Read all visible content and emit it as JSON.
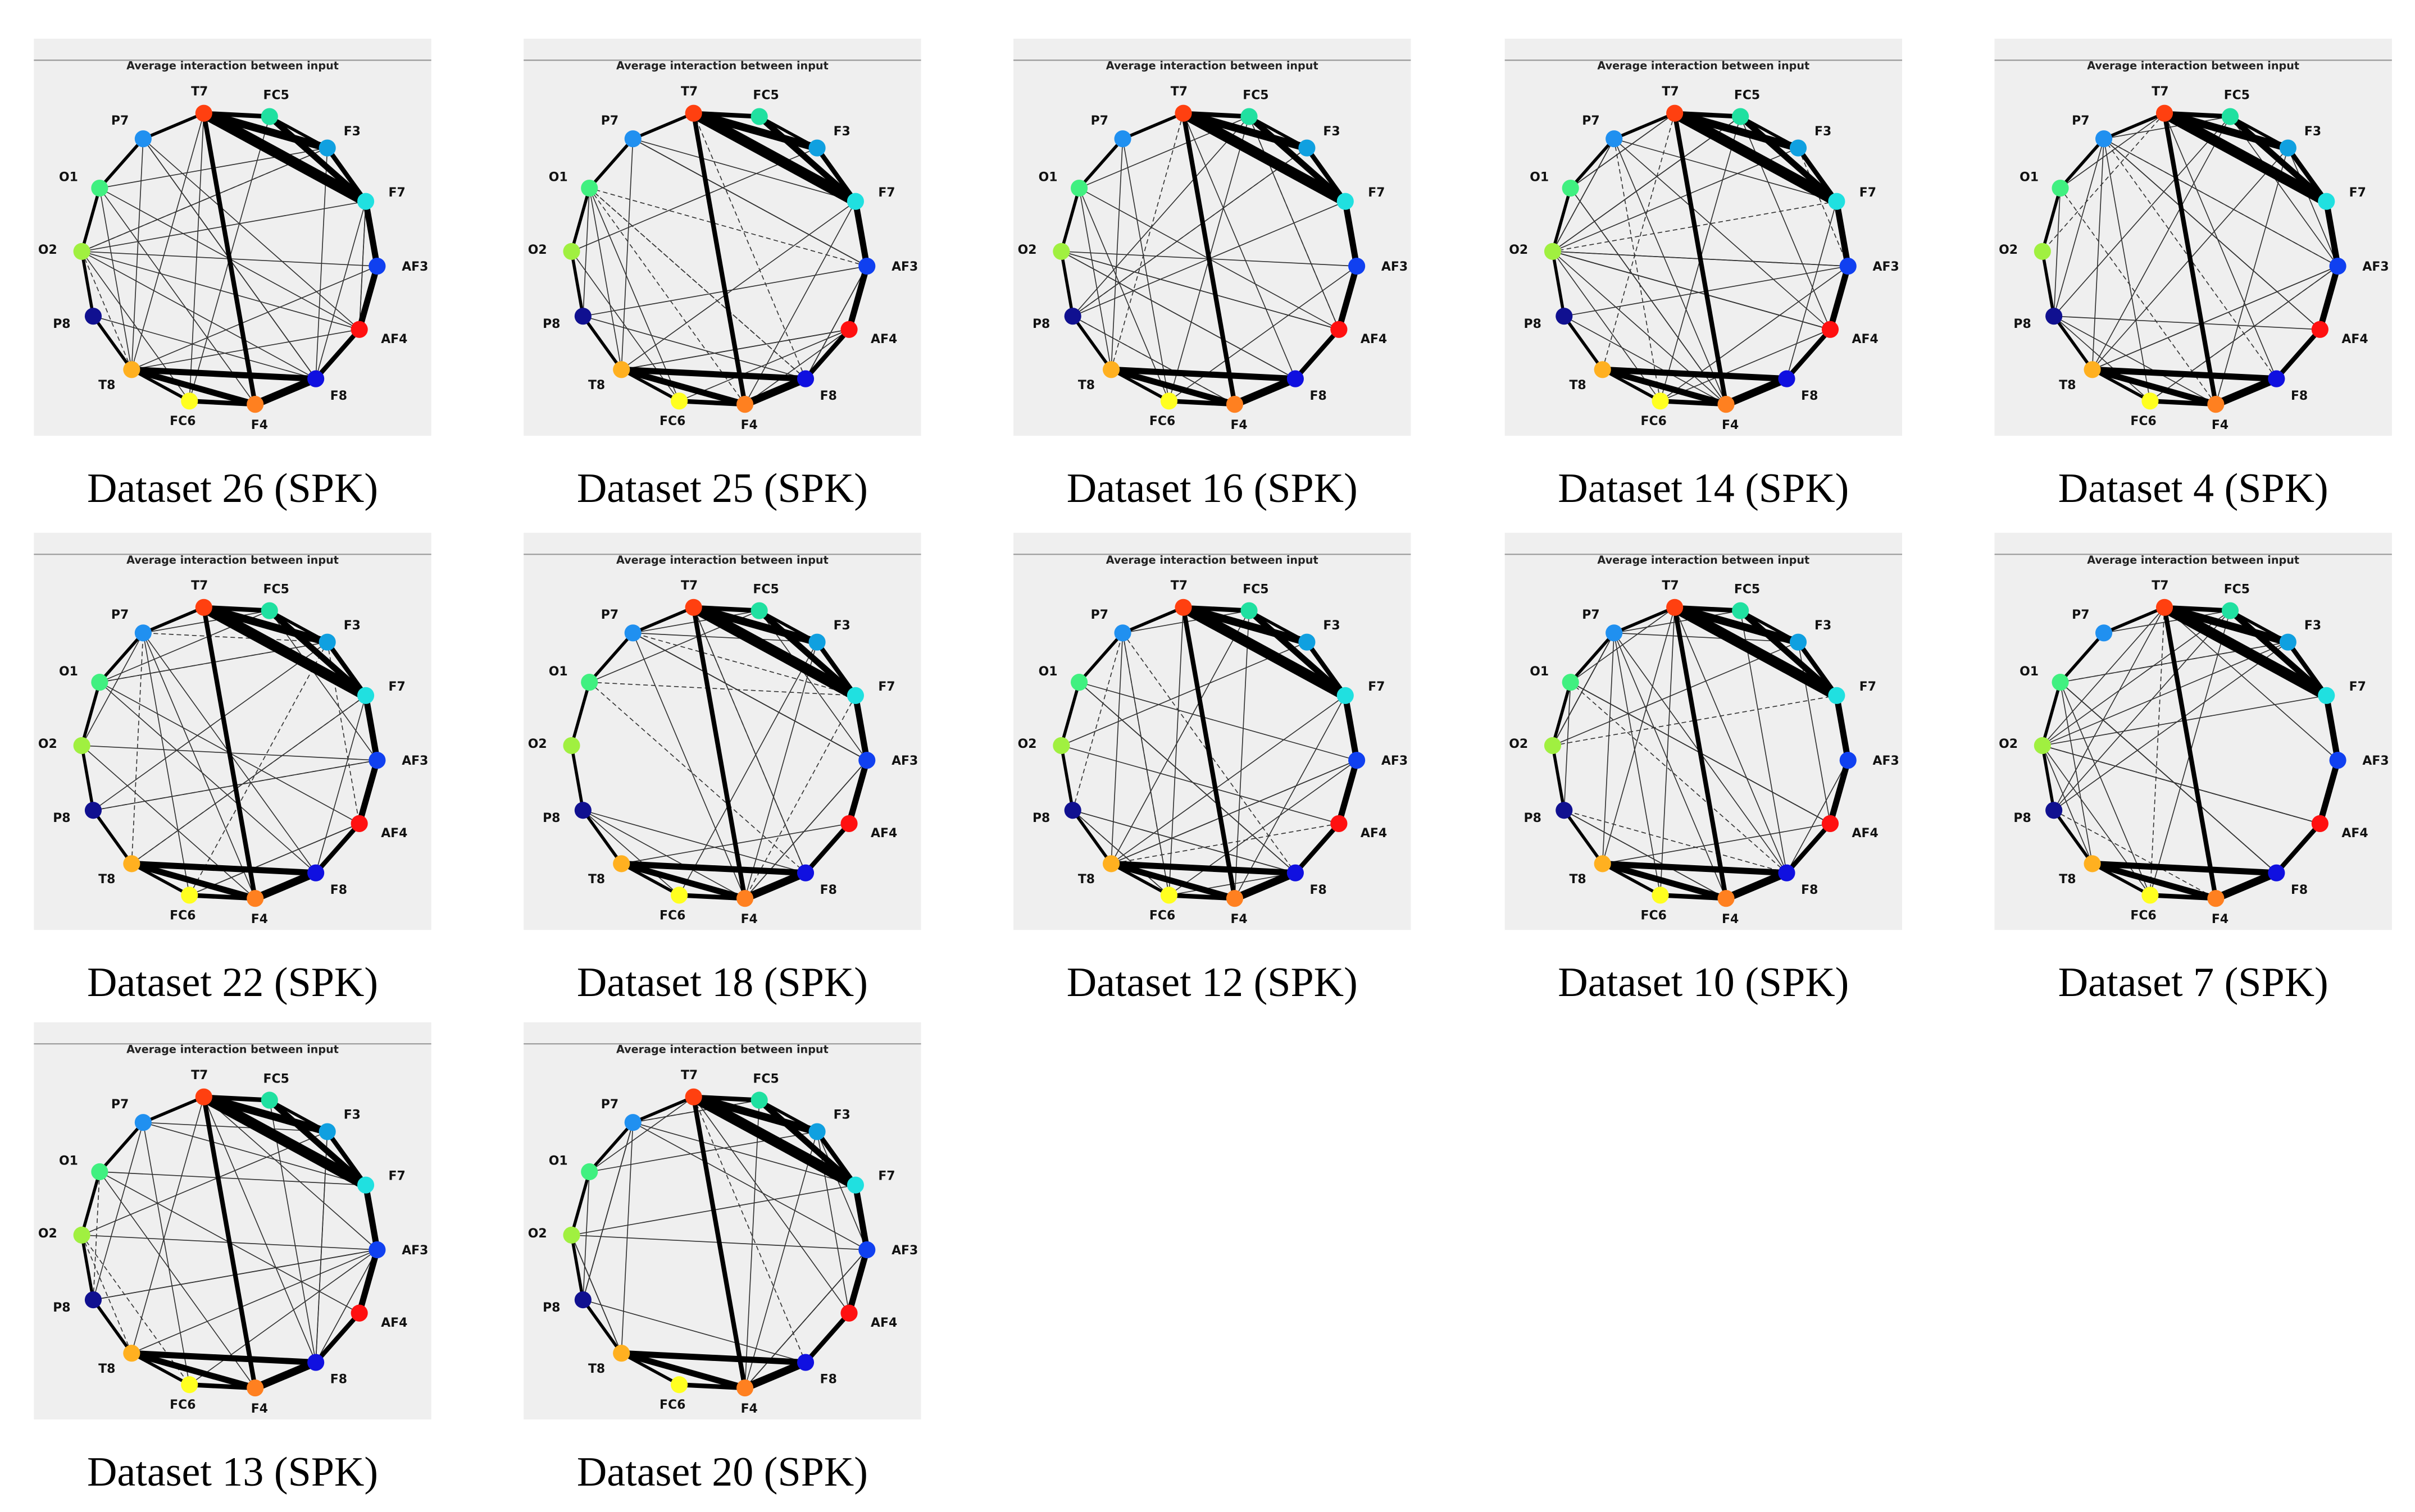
{
  "panels": [
    {
      "title": "Average interaction between input",
      "nodes": [
        "T7",
        "FC5",
        "F3",
        "F7",
        "AF3",
        "AF4",
        "F8",
        "F4",
        "FC6",
        "T8",
        "P8",
        "O2",
        "O1",
        "P7"
      ],
      "caption": "Dataset 26 (SPK)"
    },
    {
      "title": "Average interaction between input",
      "nodes": [
        "T7",
        "FC5",
        "F3",
        "F7",
        "AF3",
        "AF4",
        "F8",
        "F4",
        "FC6",
        "T8",
        "P8",
        "O2",
        "O1",
        "P7"
      ],
      "caption": "Dataset 25 (SPK)"
    },
    {
      "title": "Average interaction between input",
      "nodes": [
        "T7",
        "FC5",
        "F3",
        "F7",
        "AF3",
        "AF4",
        "F8",
        "F4",
        "FC6",
        "T8",
        "P8",
        "O2",
        "O1",
        "P7"
      ],
      "caption": "Dataset 16 (SPK)"
    },
    {
      "title": "Average interaction between input",
      "nodes": [
        "T7",
        "FC5",
        "F3",
        "F7",
        "AF3",
        "AF4",
        "F8",
        "F4",
        "FC6",
        "T8",
        "P8",
        "O2",
        "O1",
        "P7"
      ],
      "caption": "Dataset 14 (SPK)"
    },
    {
      "title": "Average interaction between input",
      "nodes": [
        "T7",
        "FC5",
        "F3",
        "F7",
        "AF3",
        "AF4",
        "F8",
        "F4",
        "FC6",
        "T8",
        "P8",
        "O2",
        "O1",
        "P7"
      ],
      "caption": "Dataset 4 (SPK)"
    },
    {
      "title": "Average interaction between input",
      "nodes": [
        "T7",
        "FC5",
        "F3",
        "F7",
        "AF3",
        "AF4",
        "F8",
        "F4",
        "FC6",
        "T8",
        "P8",
        "O2",
        "O1",
        "P7"
      ],
      "caption": "Dataset 22 (SPK)"
    },
    {
      "title": "Average interaction between input",
      "nodes": [
        "T7",
        "FC5",
        "F3",
        "F7",
        "AF3",
        "AF4",
        "F8",
        "F4",
        "FC6",
        "T8",
        "P8",
        "O2",
        "O1",
        "P7"
      ],
      "caption": "Dataset 18 (SPK)"
    },
    {
      "title": "Average interaction between input",
      "nodes": [
        "T7",
        "FC5",
        "F3",
        "F7",
        "AF3",
        "AF4",
        "F8",
        "F4",
        "FC6",
        "T8",
        "P8",
        "O2",
        "O1",
        "P7"
      ],
      "caption": "Dataset 12 (SPK)"
    },
    {
      "title": "Average interaction between input",
      "nodes": [
        "T7",
        "FC5",
        "F3",
        "F7",
        "AF3",
        "AF4",
        "F8",
        "F4",
        "FC6",
        "T8",
        "P8",
        "O2",
        "O1",
        "P7"
      ],
      "caption": "Dataset 10 (SPK)"
    },
    {
      "title": "Average interaction between input",
      "nodes": [
        "T7",
        "FC5",
        "F3",
        "F7",
        "AF3",
        "AF4",
        "F8",
        "F4",
        "FC6",
        "T8",
        "P8",
        "O2",
        "O1",
        "P7"
      ],
      "caption": "Dataset 7 (SPK)"
    },
    {
      "title": "Average interaction between input",
      "nodes": [
        "T7",
        "FC5",
        "F3",
        "F7",
        "AF3",
        "AF4",
        "F8",
        "F4",
        "FC6",
        "T8",
        "P8",
        "O2",
        "O1",
        "P7"
      ],
      "caption": "Dataset 13 (SPK)"
    },
    {
      "title": "Average interaction between input",
      "nodes": [
        "T7",
        "FC5",
        "F3",
        "F7",
        "AF3",
        "AF4",
        "F8",
        "F4",
        "FC6",
        "T8",
        "P8",
        "O2",
        "O1",
        "P7"
      ],
      "caption": "Dataset 20 (SPK)"
    }
  ]
}
